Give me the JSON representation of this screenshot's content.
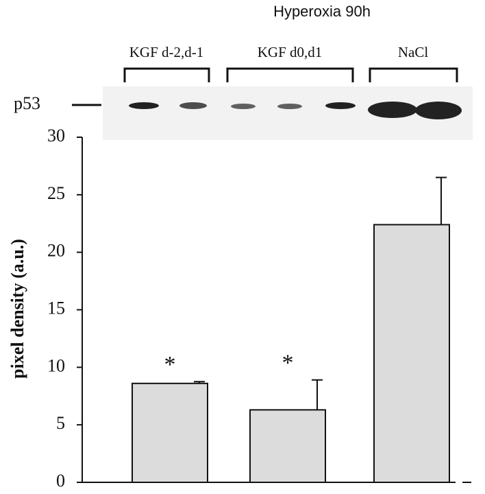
{
  "chart_data": {
    "type": "bar",
    "title": "Hyperoxia 90h",
    "blot_label": "p53",
    "ylabel": "pixel density (a.u.)",
    "categories": [
      "KGF d-2,d-1",
      "KGF d0,d1",
      "NaCl"
    ],
    "values": [
      8.6,
      6.3,
      22.4
    ],
    "errors": [
      0.15,
      2.6,
      4.1
    ],
    "annotations": [
      "*",
      "*"
    ],
    "color": "#dcdcdc",
    "ylim": [
      0,
      30
    ],
    "yticks": [
      0,
      5,
      10,
      15,
      20,
      25,
      30
    ]
  }
}
